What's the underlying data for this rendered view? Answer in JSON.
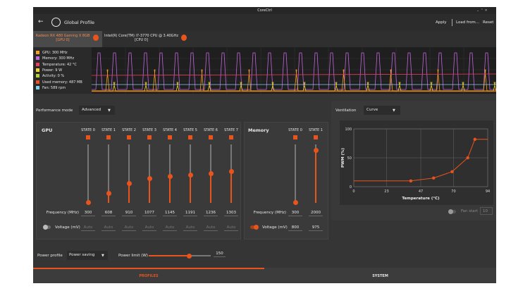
{
  "window_title": "CoreCtrl",
  "header": {
    "title": "Global Profile",
    "actions": [
      "Apply",
      "Load from...",
      "Reset"
    ]
  },
  "device_tabs": [
    {
      "name": "Radeon RX 480 Gaming X 8GB",
      "id": "[GPU 0]"
    },
    {
      "name": "Intel(R) Core(TM) i7-3770 CPU @ 3.40GHz",
      "id": "[CPU 0]"
    }
  ],
  "sensors": [
    {
      "label": "GPU: 300 MHz",
      "color": "#f5a01f"
    },
    {
      "label": "Memory: 300 MHz",
      "color": "#c266e0"
    },
    {
      "label": "Temperature: 42 °C",
      "color": "#e8405a"
    },
    {
      "label": "Power: 9 W",
      "color": "#f2d22e"
    },
    {
      "label": "Activity: 0 %",
      "color": "#b5d13a"
    },
    {
      "label": "Used memory: 487 MB",
      "color": "#e9541c"
    },
    {
      "label": "Fan: 589 rpm",
      "color": "#7fd1e8"
    }
  ],
  "performance": {
    "label": "Performance mode",
    "value": "Advanced"
  },
  "gpu": {
    "title": "GPU",
    "states": [
      "STATE 0",
      "STATE 1",
      "STATE 2",
      "STATE 3",
      "STATE 4",
      "STATE 5",
      "STATE 6",
      "STATE 7"
    ],
    "frequency_label": "Frequency (MHz)",
    "frequencies": [
      300,
      608,
      910,
      1077,
      1145,
      1191,
      1236,
      1303
    ],
    "voltage_label": "Voltage (mV)",
    "voltages": [
      "Auto",
      "Auto",
      "Auto",
      "Auto",
      "Auto",
      "Auto",
      "Auto",
      "Auto"
    ]
  },
  "memory": {
    "title": "Memory",
    "states": [
      "STATE 0",
      "STATE 1"
    ],
    "frequency_label": "Frequency (MHz)",
    "frequencies": [
      300,
      2000
    ],
    "voltage_label": "Voltage (mV)",
    "voltages": [
      800,
      975
    ]
  },
  "ventilation": {
    "label": "Ventilation",
    "mode": "Curve",
    "fan_start_label": "Fan start",
    "fan_start": 10
  },
  "chart_data": {
    "type": "line",
    "y_label": "PWM (%)",
    "x_label": "Temperature (°C)",
    "x": [
      0,
      40,
      56,
      69,
      80,
      85,
      94
    ],
    "series": [
      {
        "color": "#e9541c",
        "values": [
          10,
          10,
          15,
          26,
          50,
          82,
          82
        ]
      }
    ],
    "xlim": [
      0,
      94
    ],
    "ylim": [
      0,
      100
    ],
    "xticks": [
      0,
      23,
      47,
      70,
      94
    ],
    "yticks": [
      0,
      50,
      100
    ],
    "grid": true
  },
  "power": {
    "profile_label": "Power profile",
    "profile": "Power saving",
    "limit_label": "Power limit (W)",
    "limit": 150
  },
  "bottom_tabs": [
    "PROFILES",
    "SYSTEM"
  ]
}
